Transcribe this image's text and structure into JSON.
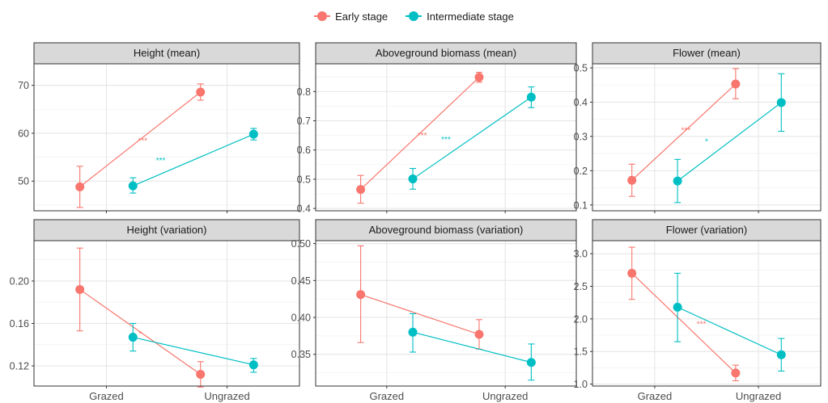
{
  "legend": {
    "items": [
      {
        "label": "Early stage",
        "color": "#F8766D"
      },
      {
        "label": "Intermediate stage",
        "color": "#00BFC4"
      }
    ]
  },
  "chart_data": [
    {
      "type": "line",
      "title": "Height (mean)",
      "categories": [
        "Grazed",
        "Ungrazed"
      ],
      "ylim": [
        43.8,
        74.5
      ],
      "yticks": [
        50,
        60,
        70
      ],
      "series": [
        {
          "name": "Early stage",
          "values": [
            48.8,
            68.6
          ],
          "err_low": [
            44.5,
            66.9
          ],
          "err_high": [
            53.1,
            70.3
          ]
        },
        {
          "name": "Intermediate stage",
          "values": [
            49.0,
            59.8
          ],
          "err_low": [
            47.5,
            58.6
          ],
          "err_high": [
            50.7,
            61.0
          ]
        }
      ],
      "annotations": [
        {
          "text": "***",
          "x": "Grazed",
          "xoffset": 0.3,
          "y": 58.6,
          "series": "Early stage"
        },
        {
          "text": "***",
          "x": "Grazed",
          "xoffset": 0.45,
          "y": 54.4,
          "series": "Intermediate stage"
        }
      ]
    },
    {
      "type": "line",
      "title": "Aboveground biomass (mean)",
      "categories": [
        "Grazed",
        "Ungrazed"
      ],
      "ylim": [
        0.392,
        0.895
      ],
      "yticks": [
        0.4,
        0.5,
        0.6,
        0.7,
        0.8
      ],
      "series": [
        {
          "name": "Early stage",
          "values": [
            0.465,
            0.849
          ],
          "err_low": [
            0.418,
            0.832
          ],
          "err_high": [
            0.513,
            0.866
          ]
        },
        {
          "name": "Intermediate stage",
          "values": [
            0.501,
            0.781
          ],
          "err_low": [
            0.466,
            0.745
          ],
          "err_high": [
            0.537,
            0.816
          ]
        }
      ],
      "annotations": [
        {
          "text": "***",
          "x": "Grazed",
          "xoffset": 0.3,
          "y": 0.652,
          "series": "Early stage"
        },
        {
          "text": "***",
          "x": "Grazed",
          "xoffset": 0.5,
          "y": 0.638,
          "series": "Intermediate stage"
        }
      ]
    },
    {
      "type": "line",
      "title": "Flower (mean)",
      "categories": [
        "Grazed",
        "Ungrazed"
      ],
      "ylim": [
        0.083,
        0.512
      ],
      "yticks": [
        0.1,
        0.2,
        0.3,
        0.4,
        0.5
      ],
      "series": [
        {
          "name": "Early stage",
          "values": [
            0.172,
            0.453
          ],
          "err_low": [
            0.125,
            0.41
          ],
          "err_high": [
            0.219,
            0.498
          ]
        },
        {
          "name": "Intermediate stage",
          "values": [
            0.17,
            0.399
          ],
          "err_low": [
            0.107,
            0.315
          ],
          "err_high": [
            0.233,
            0.483
          ]
        }
      ],
      "annotations": [
        {
          "text": "***",
          "x": "Grazed",
          "xoffset": 0.3,
          "y": 0.32,
          "series": "Early stage"
        },
        {
          "text": "*",
          "x": "Grazed",
          "xoffset": 0.5,
          "y": 0.287,
          "series": "Intermediate stage"
        }
      ]
    },
    {
      "type": "line",
      "title": "Height (variation)",
      "categories": [
        "Grazed",
        "Ungrazed"
      ],
      "xlabel": "",
      "ylim": [
        0.101,
        0.238
      ],
      "yticks": [
        0.12,
        0.16,
        0.2
      ],
      "series": [
        {
          "name": "Early stage",
          "values": [
            0.192,
            0.112
          ],
          "err_low": [
            0.153,
            0.1
          ],
          "err_high": [
            0.231,
            0.124
          ]
        },
        {
          "name": "Intermediate stage",
          "values": [
            0.147,
            0.121
          ],
          "err_low": [
            0.134,
            0.114
          ],
          "err_high": [
            0.16,
            0.127
          ]
        }
      ],
      "annotations": [
        {
          "text": "*",
          "x": "Grazed",
          "xoffset": 0.28,
          "y": 0.151,
          "series": "Early stage"
        }
      ]
    },
    {
      "type": "line",
      "title": "Aboveground biomass (variation)",
      "categories": [
        "Grazed",
        "Ungrazed"
      ],
      "ylim": [
        0.307,
        0.504
      ],
      "yticks": [
        0.35,
        0.4,
        0.45,
        0.5
      ],
      "series": [
        {
          "name": "Early stage",
          "values": [
            0.431,
            0.377
          ],
          "err_low": [
            0.366,
            0.357
          ],
          "err_high": [
            0.497,
            0.397
          ]
        },
        {
          "name": "Intermediate stage",
          "values": [
            0.38,
            0.339
          ],
          "err_low": [
            0.353,
            0.315
          ],
          "err_high": [
            0.405,
            0.364
          ]
        }
      ],
      "annotations": []
    },
    {
      "type": "line",
      "title": "Flower (variation)",
      "categories": [
        "Grazed",
        "Ungrazed"
      ],
      "ylim": [
        0.97,
        3.2
      ],
      "yticks": [
        1.0,
        1.5,
        2.0,
        2.5,
        3.0
      ],
      "series": [
        {
          "name": "Early stage",
          "values": [
            2.7,
            1.17
          ],
          "err_low": [
            2.3,
            1.05
          ],
          "err_high": [
            3.1,
            1.29
          ]
        },
        {
          "name": "Intermediate stage",
          "values": [
            2.18,
            1.45
          ],
          "err_low": [
            1.65,
            1.2
          ],
          "err_high": [
            2.7,
            1.7
          ]
        }
      ],
      "annotations": [
        {
          "text": "***",
          "x": "Grazed",
          "xoffset": 0.45,
          "y": 1.93,
          "series": "Early stage"
        }
      ]
    }
  ]
}
